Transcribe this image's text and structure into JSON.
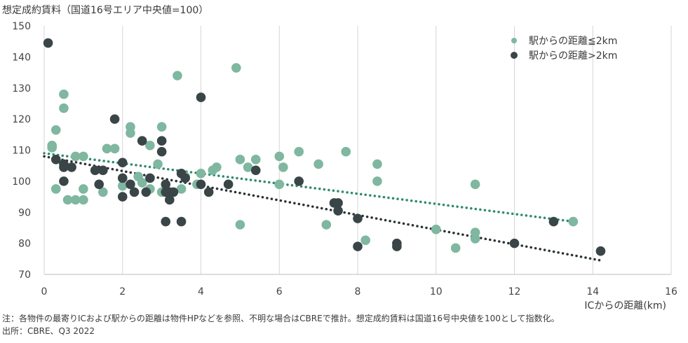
{
  "chart_data": {
    "type": "scatter",
    "ylabel": "想定成約賃料（国道16号エリア中央値=100）",
    "xlabel": "ICからの距離(km)",
    "xlim": [
      0,
      16
    ],
    "ylim": [
      70,
      150
    ],
    "xticks": [
      0,
      2,
      4,
      6,
      8,
      10,
      12,
      14,
      16
    ],
    "yticks": [
      70,
      80,
      90,
      100,
      110,
      120,
      130,
      140,
      150
    ],
    "grid": "vertical",
    "legend_position": "top-right",
    "series": [
      {
        "name": "駅からの距離≦2km",
        "color": "#7fb7a0",
        "trend": {
          "color": "#2e8b6e",
          "x": [
            0,
            13.5
          ],
          "y": [
            109,
            87
          ]
        },
        "points": [
          [
            0.2,
            111.5
          ],
          [
            0.2,
            110.8
          ],
          [
            0.3,
            116.5
          ],
          [
            0.3,
            97.5
          ],
          [
            0.5,
            128
          ],
          [
            0.5,
            123.5
          ],
          [
            0.6,
            94
          ],
          [
            0.8,
            108
          ],
          [
            0.8,
            94
          ],
          [
            1,
            108
          ],
          [
            1,
            94
          ],
          [
            1,
            97.5
          ],
          [
            1.5,
            96.5
          ],
          [
            1.6,
            110.5
          ],
          [
            1.8,
            110.5
          ],
          [
            2,
            98.5
          ],
          [
            2.2,
            117.5
          ],
          [
            2.2,
            115.5
          ],
          [
            2.4,
            101.5
          ],
          [
            2.5,
            99.5
          ],
          [
            2.7,
            111.5
          ],
          [
            2.7,
            97.5
          ],
          [
            2.9,
            105.5
          ],
          [
            3,
            117.5
          ],
          [
            3,
            96.5
          ],
          [
            3.4,
            134
          ],
          [
            3.5,
            97.5
          ],
          [
            3.6,
            101.5
          ],
          [
            3.9,
            99
          ],
          [
            4,
            102.5
          ],
          [
            4.3,
            103.5
          ],
          [
            4.4,
            104.5
          ],
          [
            4.9,
            136.5
          ],
          [
            5,
            107
          ],
          [
            5,
            86
          ],
          [
            5.2,
            104.5
          ],
          [
            5.4,
            107
          ],
          [
            6,
            108
          ],
          [
            6,
            99
          ],
          [
            6.1,
            104.5
          ],
          [
            6.5,
            109.5
          ],
          [
            7,
            105.5
          ],
          [
            7.2,
            86
          ],
          [
            7.7,
            109.5
          ],
          [
            8.2,
            81
          ],
          [
            8.5,
            105.5
          ],
          [
            8.5,
            100
          ],
          [
            10,
            84.5
          ],
          [
            10.5,
            78.5
          ],
          [
            11,
            83.5
          ],
          [
            11,
            81.5
          ],
          [
            11,
            99
          ],
          [
            13.5,
            87
          ]
        ]
      },
      {
        "name": "駅からの距離>2km",
        "color": "#3a4548",
        "trend": {
          "color": "#2a3235",
          "x": [
            0,
            14.2
          ],
          "y": [
            108,
            74.5
          ]
        },
        "points": [
          [
            0.1,
            144.5
          ],
          [
            0.3,
            107
          ],
          [
            0.5,
            105.5
          ],
          [
            0.5,
            104.5
          ],
          [
            0.5,
            100
          ],
          [
            0.7,
            104.5
          ],
          [
            1.3,
            103.5
          ],
          [
            1.4,
            99
          ],
          [
            1.5,
            103.5
          ],
          [
            1.8,
            120
          ],
          [
            2,
            106
          ],
          [
            2,
            101
          ],
          [
            2,
            95
          ],
          [
            2.2,
            99
          ],
          [
            2.3,
            96.5
          ],
          [
            2.5,
            113
          ],
          [
            2.6,
            96.5
          ],
          [
            2.7,
            101
          ],
          [
            3,
            113
          ],
          [
            3,
            109.5
          ],
          [
            3.1,
            96.5
          ],
          [
            3.1,
            87
          ],
          [
            3.1,
            99
          ],
          [
            3.2,
            96.5
          ],
          [
            3.2,
            94
          ],
          [
            3.3,
            96.5
          ],
          [
            3.5,
            102.5
          ],
          [
            3.5,
            87
          ],
          [
            3.6,
            101
          ],
          [
            4,
            127
          ],
          [
            4,
            99
          ],
          [
            4.2,
            96.5
          ],
          [
            4.7,
            99
          ],
          [
            5.4,
            103.5
          ],
          [
            6.5,
            100
          ],
          [
            7.4,
            93
          ],
          [
            7.5,
            93
          ],
          [
            7.5,
            90.5
          ],
          [
            8,
            88
          ],
          [
            8,
            79
          ],
          [
            9,
            80
          ],
          [
            9,
            79
          ],
          [
            12,
            80
          ],
          [
            13,
            87
          ],
          [
            14.2,
            77.5
          ]
        ]
      }
    ]
  },
  "footnotes": [
    "注：各物件の最寄りICおよび駅からの距離は物件HPなどを参照、不明な場合はCBREで推計。想定成約賃料は国道16号中央値を100として指数化。",
    "出所：CBRE、Q3 2022"
  ]
}
